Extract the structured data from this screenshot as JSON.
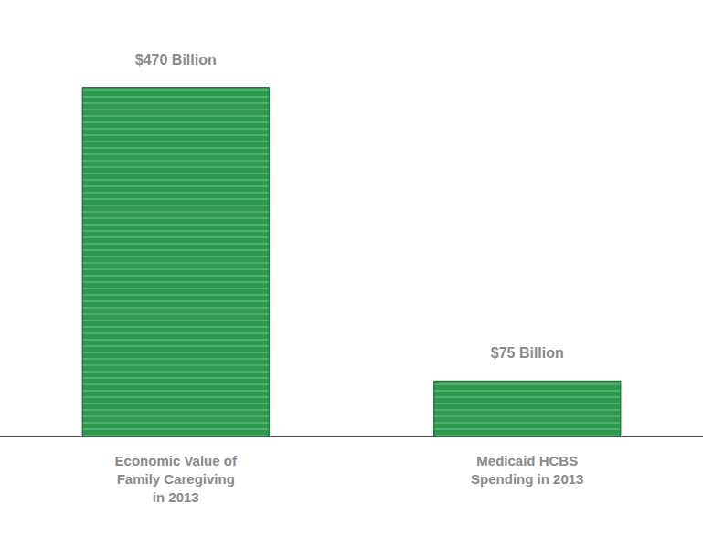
{
  "chart_data": {
    "type": "bar",
    "categories": [
      "Economic Value of Family Caregiving in 2013",
      "Medicaid HCBS Spending in 2013"
    ],
    "values": [
      470,
      75
    ],
    "value_labels": [
      "$470 Billion",
      "$75 Billion"
    ],
    "data_labels": true,
    "color": "#2d9b4e",
    "ylim": [
      0,
      470
    ],
    "tick_labels": "x",
    "grid": false
  }
}
